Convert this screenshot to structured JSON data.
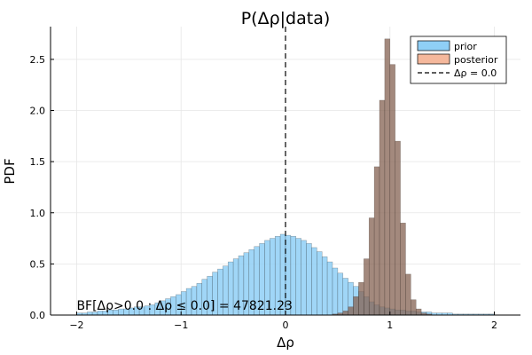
{
  "chart_data": {
    "type": "bar",
    "title": "P(Δρ|data)",
    "xlabel": "Δρ",
    "ylabel": "PDF",
    "xlim": [
      -2.25,
      2.25
    ],
    "ylim": [
      0,
      2.82
    ],
    "xticks": [
      -2,
      -1,
      0,
      1,
      2
    ],
    "xtick_labels": [
      "−2",
      "−1",
      "0",
      "1",
      "2"
    ],
    "yticks": [
      0,
      0.5,
      1.0,
      1.5,
      2.0,
      2.5
    ],
    "ytick_labels": [
      "0.0",
      "0.5",
      "1.0",
      "1.5",
      "2.0",
      "2.5"
    ],
    "grid": true,
    "legend_position": "top-right",
    "bin_width": 0.05,
    "series": [
      {
        "name": "prior",
        "kind": "histogram",
        "color": "#8fcff6",
        "bins": [
          [
            -2.0,
            0.02
          ],
          [
            -1.95,
            0.02
          ],
          [
            -1.9,
            0.03
          ],
          [
            -1.85,
            0.03
          ],
          [
            -1.8,
            0.04
          ],
          [
            -1.75,
            0.04
          ],
          [
            -1.7,
            0.05
          ],
          [
            -1.65,
            0.05
          ],
          [
            -1.6,
            0.06
          ],
          [
            -1.55,
            0.06
          ],
          [
            -1.5,
            0.07
          ],
          [
            -1.45,
            0.08
          ],
          [
            -1.4,
            0.08
          ],
          [
            -1.35,
            0.09
          ],
          [
            -1.3,
            0.1
          ],
          [
            -1.25,
            0.12
          ],
          [
            -1.2,
            0.14
          ],
          [
            -1.15,
            0.16
          ],
          [
            -1.1,
            0.18
          ],
          [
            -1.05,
            0.2
          ],
          [
            -1.0,
            0.23
          ],
          [
            -0.95,
            0.26
          ],
          [
            -0.9,
            0.28
          ],
          [
            -0.85,
            0.31
          ],
          [
            -0.8,
            0.35
          ],
          [
            -0.75,
            0.38
          ],
          [
            -0.7,
            0.42
          ],
          [
            -0.65,
            0.45
          ],
          [
            -0.6,
            0.48
          ],
          [
            -0.55,
            0.52
          ],
          [
            -0.5,
            0.55
          ],
          [
            -0.45,
            0.58
          ],
          [
            -0.4,
            0.61
          ],
          [
            -0.35,
            0.64
          ],
          [
            -0.3,
            0.67
          ],
          [
            -0.25,
            0.7
          ],
          [
            -0.2,
            0.73
          ],
          [
            -0.15,
            0.75
          ],
          [
            -0.1,
            0.77
          ],
          [
            -0.05,
            0.79
          ],
          [
            0.0,
            0.78
          ],
          [
            0.05,
            0.77
          ],
          [
            0.1,
            0.75
          ],
          [
            0.15,
            0.73
          ],
          [
            0.2,
            0.7
          ],
          [
            0.25,
            0.66
          ],
          [
            0.3,
            0.62
          ],
          [
            0.35,
            0.57
          ],
          [
            0.4,
            0.52
          ],
          [
            0.45,
            0.46
          ],
          [
            0.5,
            0.41
          ],
          [
            0.55,
            0.36
          ],
          [
            0.6,
            0.32
          ],
          [
            0.65,
            0.28
          ],
          [
            0.7,
            0.23
          ],
          [
            0.75,
            0.18
          ],
          [
            0.8,
            0.13
          ],
          [
            0.85,
            0.1
          ],
          [
            0.9,
            0.08
          ],
          [
            0.95,
            0.07
          ],
          [
            1.0,
            0.06
          ],
          [
            1.05,
            0.05
          ],
          [
            1.1,
            0.05
          ],
          [
            1.15,
            0.04
          ],
          [
            1.2,
            0.04
          ],
          [
            1.25,
            0.03
          ],
          [
            1.3,
            0.03
          ],
          [
            1.35,
            0.03
          ],
          [
            1.4,
            0.02
          ],
          [
            1.45,
            0.02
          ],
          [
            1.5,
            0.02
          ],
          [
            1.55,
            0.02
          ],
          [
            1.6,
            0.01
          ],
          [
            1.65,
            0.01
          ],
          [
            1.7,
            0.01
          ],
          [
            1.75,
            0.01
          ],
          [
            1.8,
            0.01
          ],
          [
            1.85,
            0.01
          ],
          [
            1.9,
            0.01
          ],
          [
            1.95,
            0.01
          ]
        ]
      },
      {
        "name": "posterior",
        "kind": "histogram",
        "color": "#f5b89c",
        "bins": [
          [
            0.45,
            0.01
          ],
          [
            0.5,
            0.02
          ],
          [
            0.55,
            0.04
          ],
          [
            0.6,
            0.08
          ],
          [
            0.65,
            0.18
          ],
          [
            0.7,
            0.32
          ],
          [
            0.75,
            0.55
          ],
          [
            0.8,
            0.95
          ],
          [
            0.85,
            1.45
          ],
          [
            0.9,
            2.1
          ],
          [
            0.95,
            2.7
          ],
          [
            1.0,
            2.45
          ],
          [
            1.05,
            1.7
          ],
          [
            1.1,
            0.9
          ],
          [
            1.15,
            0.4
          ],
          [
            1.2,
            0.15
          ],
          [
            1.25,
            0.06
          ],
          [
            1.3,
            0.02
          ],
          [
            1.35,
            0.01
          ]
        ]
      },
      {
        "name": "Δρ = 0.0",
        "kind": "vline",
        "color": "#000000",
        "x": 0.0
      }
    ],
    "annotation": {
      "text": "BF[Δρ>0.0 : Δρ ≤ 0.0] = 47821.23",
      "x": -2.0,
      "y": 0.05
    }
  }
}
